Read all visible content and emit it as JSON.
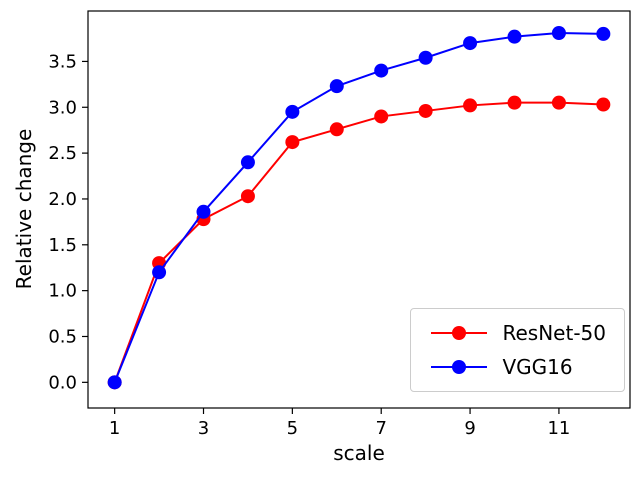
{
  "chart_data": {
    "type": "line",
    "title": "",
    "xlabel": "scale",
    "ylabel": "Relative change",
    "x": [
      1,
      2,
      3,
      4,
      5,
      6,
      7,
      8,
      9,
      10,
      11,
      12
    ],
    "series": [
      {
        "name": "ResNet-50",
        "color": "#ff0000",
        "values": [
          0.0,
          1.3,
          1.78,
          2.03,
          2.62,
          2.76,
          2.9,
          2.96,
          3.02,
          3.05,
          3.05,
          3.03
        ]
      },
      {
        "name": "VGG16",
        "color": "#0000ff",
        "values": [
          0.0,
          1.2,
          1.86,
          2.4,
          2.95,
          3.23,
          3.4,
          3.54,
          3.7,
          3.77,
          3.81,
          3.8
        ]
      }
    ],
    "xticks": [
      1,
      3,
      5,
      7,
      9,
      11
    ],
    "yticks": [
      0.0,
      0.5,
      1.0,
      1.5,
      2.0,
      2.5,
      3.0,
      3.5
    ],
    "xlim": [
      0.4,
      12.6
    ],
    "ylim": [
      -0.28,
      4.05
    ],
    "grid": false,
    "legend_position": "lower right",
    "marker": "circle",
    "line_width": 2,
    "marker_radius": 7,
    "background": "#ffffff",
    "axis_color": "#000000"
  }
}
